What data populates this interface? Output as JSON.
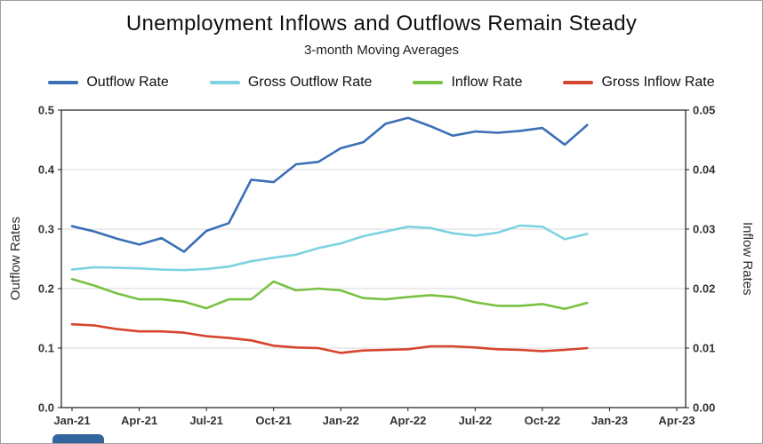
{
  "title": "Unemployment Inflows and Outflows Remain Steady",
  "subtitle": "3-month Moving Averages",
  "chart_data": {
    "type": "line",
    "legend_position": "top",
    "grid": "horizontal",
    "x": [
      "Jan-21",
      "Feb-21",
      "Mar-21",
      "Apr-21",
      "May-21",
      "Jun-21",
      "Jul-21",
      "Aug-21",
      "Sep-21",
      "Oct-21",
      "Nov-21",
      "Dec-21",
      "Jan-22",
      "Feb-22",
      "Mar-22",
      "Apr-22",
      "May-22",
      "Jun-22",
      "Jul-22",
      "Aug-22",
      "Sep-22",
      "Oct-22",
      "Nov-22",
      "Dec-22"
    ],
    "x_axis": {
      "tick_labels": [
        "Jan-21",
        "Apr-21",
        "Jul-21",
        "Oct-21",
        "Jan-22",
        "Apr-22",
        "Jul-22",
        "Oct-22",
        "Jan-23",
        "Apr-23"
      ],
      "range_months": 27
    },
    "left_axis": {
      "label": "Outflow Rates",
      "min": 0,
      "max": 0.5,
      "ticks": [
        0,
        0.1,
        0.2,
        0.3,
        0.4,
        0.5
      ]
    },
    "right_axis": {
      "label": "Inflow Rates",
      "min": 0,
      "max": 0.05,
      "ticks": [
        0,
        0.01,
        0.02,
        0.03,
        0.04,
        0.05
      ]
    },
    "series": [
      {
        "name": "Outflow Rate",
        "axis": "left",
        "color": "#3b6fb6",
        "values": [
          0.305,
          0.296,
          0.284,
          0.274,
          0.285,
          0.262,
          0.297,
          0.31,
          0.383,
          0.379,
          0.409,
          0.413,
          0.436,
          0.446,
          0.477,
          0.487,
          0.473,
          0.457,
          0.464,
          0.462,
          0.465,
          0.47,
          0.442,
          0.475
        ]
      },
      {
        "name": "Gross Outflow Rate",
        "axis": "left",
        "color": "#7ed2e2",
        "values": [
          0.232,
          0.236,
          0.235,
          0.234,
          0.232,
          0.231,
          0.233,
          0.237,
          0.246,
          0.252,
          0.257,
          0.268,
          0.276,
          0.288,
          0.296,
          0.304,
          0.302,
          0.293,
          0.289,
          0.294,
          0.306,
          0.304,
          0.283,
          0.292
        ]
      },
      {
        "name": "Inflow Rate",
        "axis": "right",
        "color": "#79c142",
        "values": [
          0.0216,
          0.0205,
          0.0192,
          0.0182,
          0.0182,
          0.0178,
          0.0167,
          0.0182,
          0.0182,
          0.0212,
          0.0197,
          0.02,
          0.0197,
          0.0184,
          0.0182,
          0.0186,
          0.0189,
          0.0186,
          0.0177,
          0.0171,
          0.0171,
          0.0174,
          0.0166,
          0.0176
        ]
      },
      {
        "name": "Gross Inflow Rate",
        "axis": "right",
        "color": "#d6442c",
        "values": [
          0.014,
          0.0138,
          0.0132,
          0.0128,
          0.0128,
          0.0126,
          0.012,
          0.0117,
          0.0113,
          0.0104,
          0.0101,
          0.01,
          0.0092,
          0.0096,
          0.0097,
          0.0098,
          0.0103,
          0.0103,
          0.0101,
          0.0098,
          0.0097,
          0.0095,
          0.0097,
          0.01
        ]
      }
    ]
  }
}
